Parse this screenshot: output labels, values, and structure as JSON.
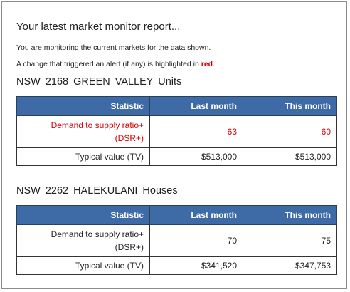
{
  "report": {
    "title": "Your latest market monitor report...",
    "intro_line": "You are monitoring the current markets for the data shown.",
    "alert_line_prefix": "A change that triggered an alert (if any) is highlighted in",
    "alert_word": "red",
    "alert_line_suffix": "."
  },
  "colors": {
    "header_bg": "#3e6aa6",
    "alert_red": "#d40000"
  },
  "columns": {
    "statistic": "Statistic",
    "last_month": "Last month",
    "this_month": "This month"
  },
  "markets": [
    {
      "heading": "NSW  2168  GREEN VALLEY  Units",
      "rows": {
        "dsr": {
          "label_line1": "Demand to supply ratio+",
          "label_line2": "(DSR+)",
          "last": "63",
          "this": "60",
          "alert": true
        },
        "tv": {
          "label": "Typical value (TV)",
          "last": "$513,000",
          "this": "$513,000",
          "alert": false
        }
      }
    },
    {
      "heading": "NSW  2262  HALEKULANI  Houses",
      "rows": {
        "dsr": {
          "label_line1": "Demand to supply ratio+",
          "label_line2": "(DSR+)",
          "last": "70",
          "this": "75",
          "alert": false
        },
        "tv": {
          "label": "Typical value (TV)",
          "last": "$341,520",
          "this": "$347,753",
          "alert": false
        }
      }
    }
  ]
}
